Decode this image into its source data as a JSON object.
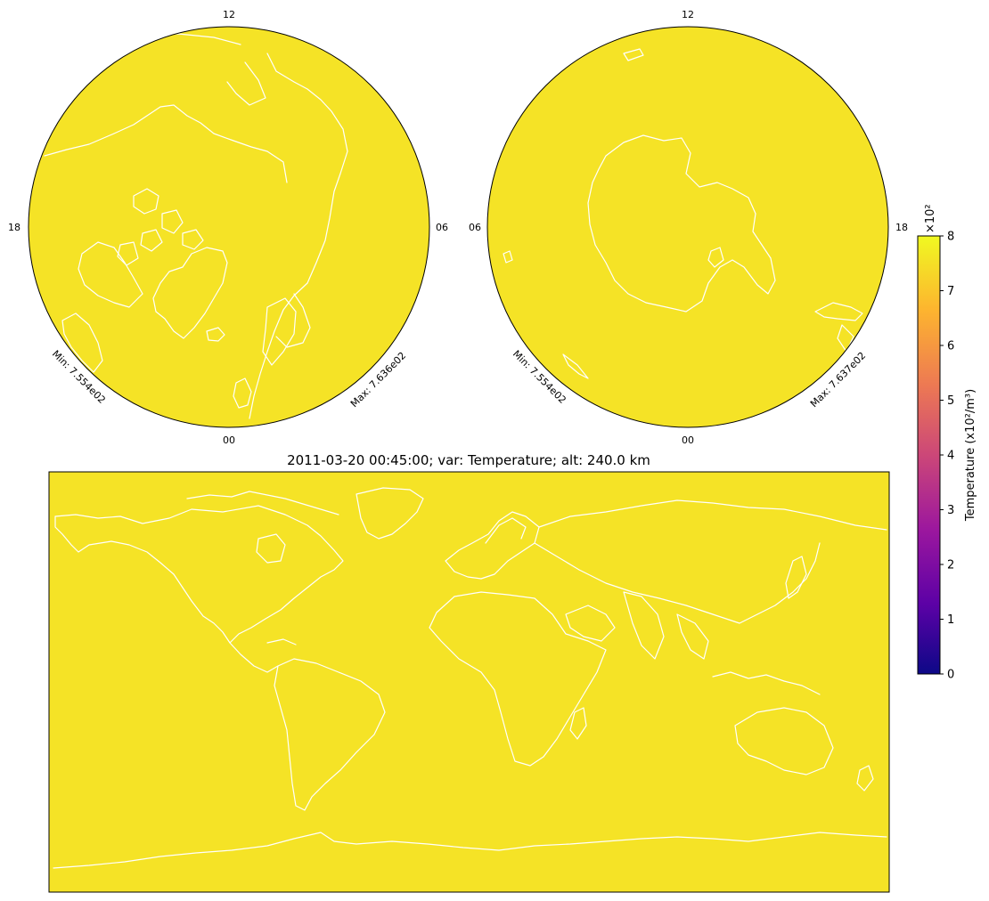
{
  "figure": {
    "title": "2011-03-20 00:45:00; var: Temperature; alt: 240.0 km"
  },
  "north_polar": {
    "ticks": {
      "top": "12",
      "bottom": "00",
      "left": "18",
      "right": "06"
    },
    "min_label": "Min: 7.554e02",
    "max_label": "Max: 7.636e02"
  },
  "south_polar": {
    "ticks": {
      "top": "12",
      "bottom": "00",
      "left": "06",
      "right": "18"
    },
    "min_label": "Min: 7.554e02",
    "max_label": "Max: 7.637e02"
  },
  "colorbar": {
    "label": "Temperature (x10²/m³)",
    "multiplier": "×10²",
    "ticks": [
      "0",
      "1",
      "2",
      "3",
      "4",
      "5",
      "6",
      "7",
      "8"
    ],
    "range": [
      0,
      8
    ],
    "colormap": "plasma",
    "colormap_stops": [
      "#0d0887",
      "#5c01a6",
      "#9c179e",
      "#cc4778",
      "#ed7953",
      "#fdb42f",
      "#f0f921"
    ]
  },
  "field_color": "#f5e326",
  "coastline_color": "#ffffff"
}
